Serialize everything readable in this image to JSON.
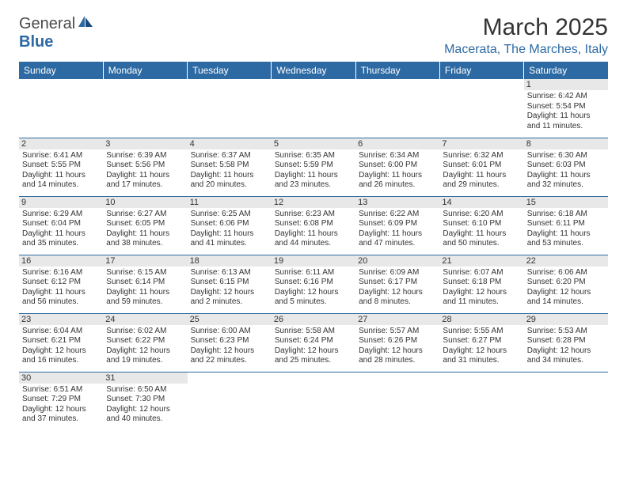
{
  "brand": {
    "name1": "General",
    "name2": "Blue"
  },
  "title": "March 2025",
  "location": "Macerata, The Marches, Italy",
  "headers": [
    "Sunday",
    "Monday",
    "Tuesday",
    "Wednesday",
    "Thursday",
    "Friday",
    "Saturday"
  ],
  "colors": {
    "primary": "#2d6aa3",
    "bg": "#ffffff",
    "cellHeader": "#e8e8e8"
  },
  "weeks": [
    [
      null,
      null,
      null,
      null,
      null,
      null,
      {
        "d": "1",
        "sr": "6:42 AM",
        "ss": "5:54 PM",
        "dl": "11 hours and 11 minutes."
      }
    ],
    [
      {
        "d": "2",
        "sr": "6:41 AM",
        "ss": "5:55 PM",
        "dl": "11 hours and 14 minutes."
      },
      {
        "d": "3",
        "sr": "6:39 AM",
        "ss": "5:56 PM",
        "dl": "11 hours and 17 minutes."
      },
      {
        "d": "4",
        "sr": "6:37 AM",
        "ss": "5:58 PM",
        "dl": "11 hours and 20 minutes."
      },
      {
        "d": "5",
        "sr": "6:35 AM",
        "ss": "5:59 PM",
        "dl": "11 hours and 23 minutes."
      },
      {
        "d": "6",
        "sr": "6:34 AM",
        "ss": "6:00 PM",
        "dl": "11 hours and 26 minutes."
      },
      {
        "d": "7",
        "sr": "6:32 AM",
        "ss": "6:01 PM",
        "dl": "11 hours and 29 minutes."
      },
      {
        "d": "8",
        "sr": "6:30 AM",
        "ss": "6:03 PM",
        "dl": "11 hours and 32 minutes."
      }
    ],
    [
      {
        "d": "9",
        "sr": "6:29 AM",
        "ss": "6:04 PM",
        "dl": "11 hours and 35 minutes."
      },
      {
        "d": "10",
        "sr": "6:27 AM",
        "ss": "6:05 PM",
        "dl": "11 hours and 38 minutes."
      },
      {
        "d": "11",
        "sr": "6:25 AM",
        "ss": "6:06 PM",
        "dl": "11 hours and 41 minutes."
      },
      {
        "d": "12",
        "sr": "6:23 AM",
        "ss": "6:08 PM",
        "dl": "11 hours and 44 minutes."
      },
      {
        "d": "13",
        "sr": "6:22 AM",
        "ss": "6:09 PM",
        "dl": "11 hours and 47 minutes."
      },
      {
        "d": "14",
        "sr": "6:20 AM",
        "ss": "6:10 PM",
        "dl": "11 hours and 50 minutes."
      },
      {
        "d": "15",
        "sr": "6:18 AM",
        "ss": "6:11 PM",
        "dl": "11 hours and 53 minutes."
      }
    ],
    [
      {
        "d": "16",
        "sr": "6:16 AM",
        "ss": "6:12 PM",
        "dl": "11 hours and 56 minutes."
      },
      {
        "d": "17",
        "sr": "6:15 AM",
        "ss": "6:14 PM",
        "dl": "11 hours and 59 minutes."
      },
      {
        "d": "18",
        "sr": "6:13 AM",
        "ss": "6:15 PM",
        "dl": "12 hours and 2 minutes."
      },
      {
        "d": "19",
        "sr": "6:11 AM",
        "ss": "6:16 PM",
        "dl": "12 hours and 5 minutes."
      },
      {
        "d": "20",
        "sr": "6:09 AM",
        "ss": "6:17 PM",
        "dl": "12 hours and 8 minutes."
      },
      {
        "d": "21",
        "sr": "6:07 AM",
        "ss": "6:18 PM",
        "dl": "12 hours and 11 minutes."
      },
      {
        "d": "22",
        "sr": "6:06 AM",
        "ss": "6:20 PM",
        "dl": "12 hours and 14 minutes."
      }
    ],
    [
      {
        "d": "23",
        "sr": "6:04 AM",
        "ss": "6:21 PM",
        "dl": "12 hours and 16 minutes."
      },
      {
        "d": "24",
        "sr": "6:02 AM",
        "ss": "6:22 PM",
        "dl": "12 hours and 19 minutes."
      },
      {
        "d": "25",
        "sr": "6:00 AM",
        "ss": "6:23 PM",
        "dl": "12 hours and 22 minutes."
      },
      {
        "d": "26",
        "sr": "5:58 AM",
        "ss": "6:24 PM",
        "dl": "12 hours and 25 minutes."
      },
      {
        "d": "27",
        "sr": "5:57 AM",
        "ss": "6:26 PM",
        "dl": "12 hours and 28 minutes."
      },
      {
        "d": "28",
        "sr": "5:55 AM",
        "ss": "6:27 PM",
        "dl": "12 hours and 31 minutes."
      },
      {
        "d": "29",
        "sr": "5:53 AM",
        "ss": "6:28 PM",
        "dl": "12 hours and 34 minutes."
      }
    ],
    [
      {
        "d": "30",
        "sr": "6:51 AM",
        "ss": "7:29 PM",
        "dl": "12 hours and 37 minutes."
      },
      {
        "d": "31",
        "sr": "6:50 AM",
        "ss": "7:30 PM",
        "dl": "12 hours and 40 minutes."
      },
      null,
      null,
      null,
      null,
      null
    ]
  ],
  "labels": {
    "sunrise": "Sunrise: ",
    "sunset": "Sunset: ",
    "daylight": "Daylight: "
  }
}
